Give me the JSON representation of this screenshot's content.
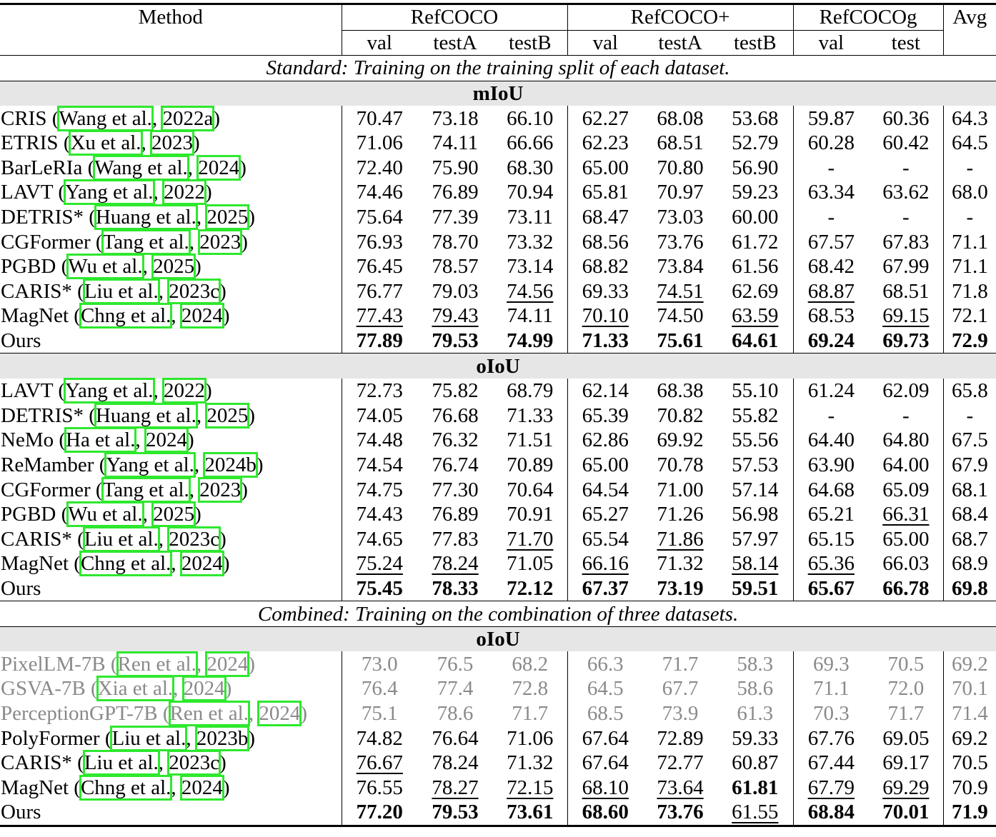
{
  "header": {
    "method": "Method",
    "groups": [
      "RefCOCO",
      "RefCOCO+",
      "RefCOCOg",
      "Avg"
    ],
    "subcols": [
      "val",
      "testA",
      "testB",
      "val",
      "testA",
      "testB",
      "val",
      "test"
    ]
  },
  "blocks": [
    {
      "caption": "Standard: Training on the training split of each dataset.",
      "sections": [
        {
          "name": "mIoU",
          "rows": [
            {
              "name": "CRIS",
              "cite": [
                "Wang et al.",
                "2022a"
              ],
              "vals": [
                "70.47",
                "73.18",
                "66.10",
                "62.27",
                "68.08",
                "53.68",
                "59.87",
                "60.36",
                "64.3"
              ]
            },
            {
              "name": "ETRIS",
              "cite": [
                "Xu et al.",
                "2023"
              ],
              "vals": [
                "71.06",
                "74.11",
                "66.66",
                "62.23",
                "68.51",
                "52.79",
                "60.28",
                "60.42",
                "64.5"
              ]
            },
            {
              "name": "BarLeRIa",
              "cite": [
                "Wang et al.",
                "2024"
              ],
              "vals": [
                "72.40",
                "75.90",
                "68.30",
                "65.00",
                "70.80",
                "56.90",
                "-",
                "-",
                "-"
              ]
            },
            {
              "name": "LAVT",
              "cite": [
                "Yang et al.",
                "2022"
              ],
              "vals": [
                "74.46",
                "76.89",
                "70.94",
                "65.81",
                "70.97",
                "59.23",
                "63.34",
                "63.62",
                "68.0"
              ]
            },
            {
              "name": "DETRIS*",
              "cite": [
                "Huang et al.",
                "2025"
              ],
              "vals": [
                "75.64",
                "77.39",
                "73.11",
                "68.47",
                "73.03",
                "60.00",
                "-",
                "-",
                "-"
              ]
            },
            {
              "name": "CGFormer",
              "cite": [
                "Tang et al.",
                "2023"
              ],
              "vals": [
                "76.93",
                "78.70",
                "73.32",
                "68.56",
                "73.76",
                "61.72",
                "67.57",
                "67.83",
                "71.1"
              ]
            },
            {
              "name": "PGBD",
              "cite": [
                "Wu et al.",
                "2025"
              ],
              "vals": [
                "76.45",
                "78.57",
                "73.14",
                "68.82",
                "73.84",
                "61.56",
                "68.42",
                "67.99",
                "71.1"
              ]
            },
            {
              "name": "CARIS*",
              "cite": [
                "Liu et al.",
                "2023c"
              ],
              "vals": [
                "76.77",
                "79.03",
                "74.56",
                "69.33",
                "74.51",
                "62.69",
                "68.87",
                "68.51",
                "71.8"
              ],
              "u": [
                2,
                4,
                6
              ]
            },
            {
              "name": "MagNet",
              "cite": [
                "Chng et al.",
                "2024"
              ],
              "vals": [
                "77.43",
                "79.43",
                "74.11",
                "70.10",
                "74.50",
                "63.59",
                "68.53",
                "69.15",
                "72.1"
              ],
              "u": [
                0,
                1,
                3,
                5,
                7
              ]
            },
            {
              "name": "Ours",
              "vals": [
                "77.89",
                "79.53",
                "74.99",
                "71.33",
                "75.61",
                "64.61",
                "69.24",
                "69.73",
                "72.9"
              ],
              "b": [
                0,
                1,
                2,
                3,
                4,
                5,
                6,
                7,
                8
              ]
            }
          ]
        },
        {
          "name": "oIoU",
          "rows": [
            {
              "name": "LAVT",
              "cite": [
                "Yang et al.",
                "2022"
              ],
              "vals": [
                "72.73",
                "75.82",
                "68.79",
                "62.14",
                "68.38",
                "55.10",
                "61.24",
                "62.09",
                "65.8"
              ]
            },
            {
              "name": "DETRIS*",
              "cite": [
                "Huang et al.",
                "2025"
              ],
              "vals": [
                "74.05",
                "76.68",
                "71.33",
                "65.39",
                "70.82",
                "55.82",
                "-",
                "-",
                "-"
              ]
            },
            {
              "name": "NeMo",
              "cite": [
                "Ha et al.",
                "2024"
              ],
              "vals": [
                "74.48",
                "76.32",
                "71.51",
                "62.86",
                "69.92",
                "55.56",
                "64.40",
                "64.80",
                "67.5"
              ]
            },
            {
              "name": "ReMamber",
              "cite": [
                "Yang et al.",
                "2024b"
              ],
              "vals": [
                "74.54",
                "76.74",
                "70.89",
                "65.00",
                "70.78",
                "57.53",
                "63.90",
                "64.00",
                "67.9"
              ]
            },
            {
              "name": "CGFormer",
              "cite": [
                "Tang et al.",
                "2023"
              ],
              "vals": [
                "74.75",
                "77.30",
                "70.64",
                "64.54",
                "71.00",
                "57.14",
                "64.68",
                "65.09",
                "68.1"
              ]
            },
            {
              "name": "PGBD",
              "cite": [
                "Wu et al.",
                "2025"
              ],
              "vals": [
                "74.43",
                "76.89",
                "70.91",
                "65.27",
                "71.26",
                "56.98",
                "65.21",
                "66.31",
                "68.4"
              ],
              "u": [
                7
              ]
            },
            {
              "name": "CARIS*",
              "cite": [
                "Liu et al.",
                "2023c"
              ],
              "vals": [
                "74.65",
                "77.83",
                "71.70",
                "65.54",
                "71.86",
                "57.97",
                "65.15",
                "65.00",
                "68.7"
              ],
              "u": [
                2,
                4
              ]
            },
            {
              "name": "MagNet",
              "cite": [
                "Chng et al.",
                "2024"
              ],
              "vals": [
                "75.24",
                "78.24",
                "71.05",
                "66.16",
                "71.32",
                "58.14",
                "65.36",
                "66.03",
                "68.9"
              ],
              "u": [
                0,
                1,
                3,
                5,
                6
              ]
            },
            {
              "name": "Ours",
              "vals": [
                "75.45",
                "78.33",
                "72.12",
                "67.37",
                "73.19",
                "59.51",
                "65.67",
                "66.78",
                "69.8"
              ],
              "b": [
                0,
                1,
                2,
                3,
                4,
                5,
                6,
                7,
                8
              ]
            }
          ]
        }
      ]
    },
    {
      "caption": "Combined: Training on the combination of three datasets.",
      "sections": [
        {
          "name": "oIoU",
          "rows": [
            {
              "name": "PixelLM-7B",
              "cite": [
                "Ren et al.",
                "2024"
              ],
              "vals": [
                "73.0",
                "76.5",
                "68.2",
                "66.3",
                "71.7",
                "58.3",
                "69.3",
                "70.5",
                "69.2"
              ],
              "gray": true
            },
            {
              "name": "GSVA-7B",
              "cite": [
                "Xia et al.",
                "2024"
              ],
              "vals": [
                "76.4",
                "77.4",
                "72.8",
                "64.5",
                "67.7",
                "58.6",
                "71.1",
                "72.0",
                "70.1"
              ],
              "gray": true
            },
            {
              "name": "PerceptionGPT-7B",
              "cite": [
                "Ren et al.",
                "2024"
              ],
              "vals": [
                "75.1",
                "78.6",
                "71.7",
                "68.5",
                "73.9",
                "61.3",
                "70.3",
                "71.7",
                "71.4"
              ],
              "gray": true
            },
            {
              "name": "PolyFormer",
              "cite": [
                "Liu et al.",
                "2023b"
              ],
              "vals": [
                "74.82",
                "76.64",
                "71.06",
                "67.64",
                "72.89",
                "59.33",
                "67.76",
                "69.05",
                "69.2"
              ]
            },
            {
              "name": "CARIS*",
              "cite": [
                "Liu et al.",
                "2023c"
              ],
              "vals": [
                "76.67",
                "78.24",
                "71.32",
                "67.64",
                "72.77",
                "60.87",
                "67.44",
                "69.17",
                "70.5"
              ],
              "u": [
                0
              ]
            },
            {
              "name": "MagNet",
              "cite": [
                "Chng et al.",
                "2024"
              ],
              "vals": [
                "76.55",
                "78.27",
                "72.15",
                "68.10",
                "73.64",
                "61.81",
                "67.79",
                "69.29",
                "70.9"
              ],
              "u": [
                1,
                2,
                3,
                4,
                6,
                7
              ],
              "b": [
                5
              ]
            },
            {
              "name": "Ours",
              "vals": [
                "77.20",
                "79.53",
                "73.61",
                "68.60",
                "73.76",
                "61.55",
                "68.84",
                "70.01",
                "71.9"
              ],
              "b": [
                0,
                1,
                2,
                3,
                4,
                6,
                7,
                8
              ],
              "u": [
                5
              ]
            }
          ]
        }
      ]
    }
  ]
}
